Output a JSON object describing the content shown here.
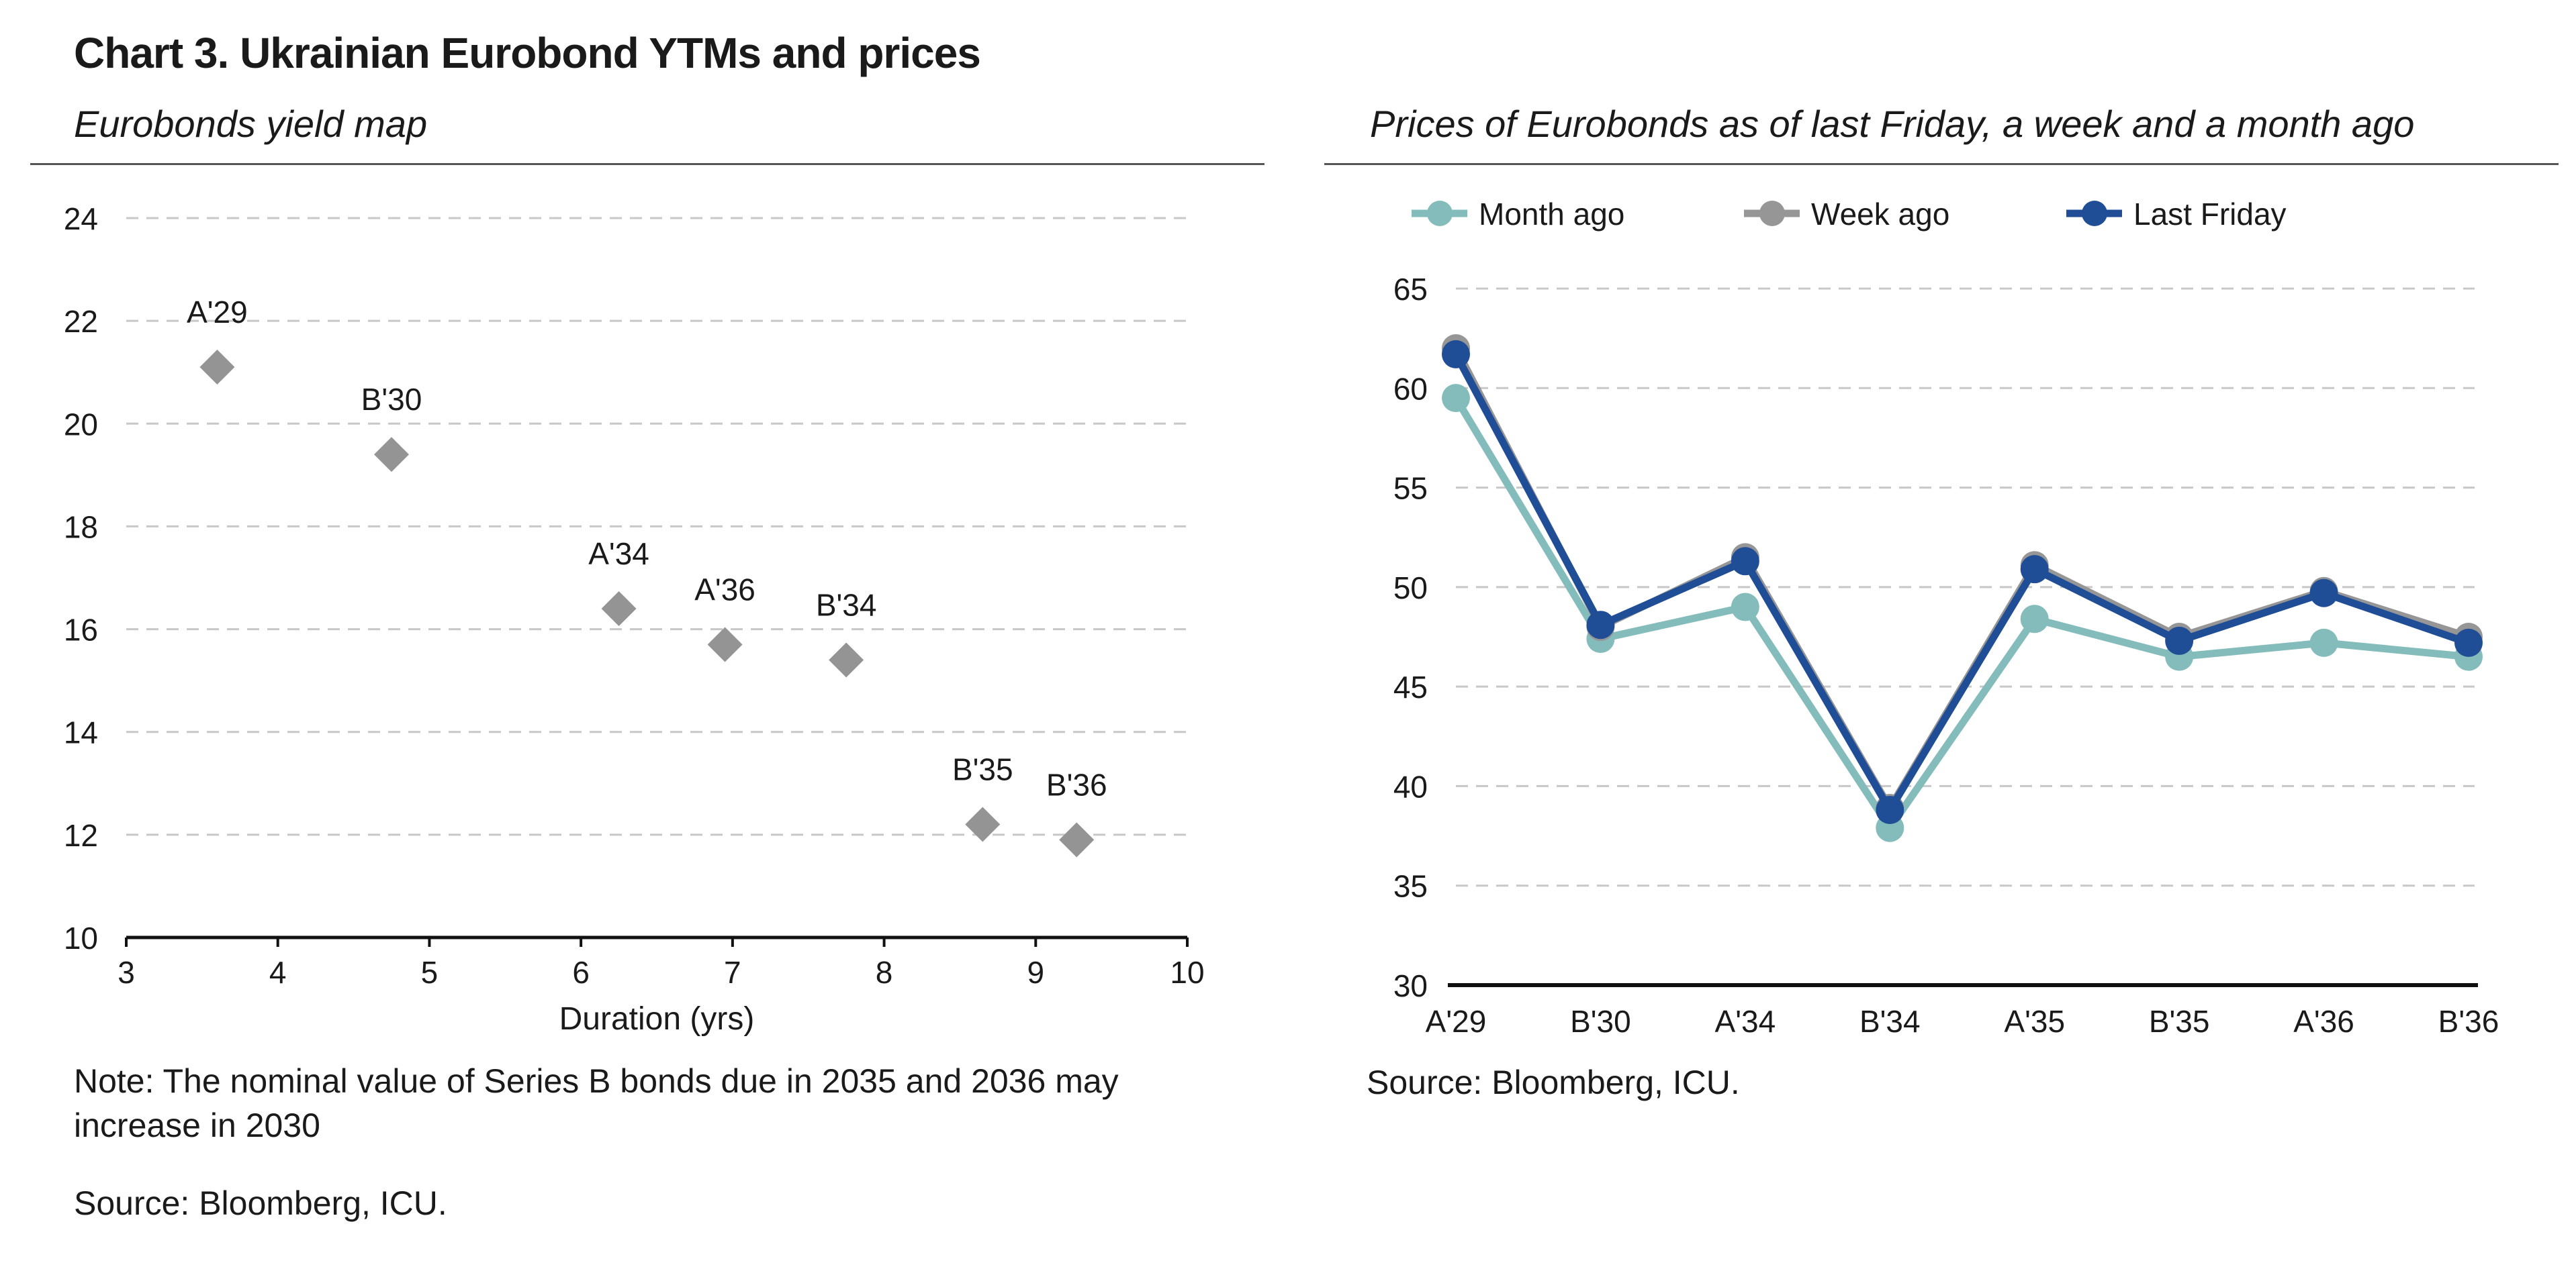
{
  "title": "Chart 3. Ukrainian Eurobond YTMs and prices",
  "left_panel": {
    "subtitle": "Eurobonds yield map",
    "note": "Note: The nominal value of Series B bonds due in 2035 and 2036 may increase in 2030",
    "source": "Source: Bloomberg, ICU."
  },
  "right_panel": {
    "subtitle": "Prices of Eurobonds as of last Friday, a week and a month ago",
    "source": "Source: Bloomberg, ICU."
  },
  "colors": {
    "grid": "#c8c8c8",
    "axis": "#111111",
    "scatter_marker": "#949494",
    "month_ago": "#84bcbc",
    "week_ago": "#969696",
    "last_friday": "#1f4e96"
  },
  "chart_data": [
    {
      "type": "scatter",
      "title": "Eurobonds yield map",
      "xlabel": "Duration (yrs)",
      "ylabel": "",
      "xlim": [
        3,
        10
      ],
      "ylim": [
        10,
        24
      ],
      "xticks": [
        3,
        4,
        5,
        6,
        7,
        8,
        9,
        10
      ],
      "yticks": [
        10,
        12,
        14,
        16,
        18,
        20,
        22,
        24
      ],
      "grid": "horizontal dashed",
      "marker": "diamond",
      "points": [
        {
          "label": "A'29",
          "x": 3.6,
          "y": 21.1
        },
        {
          "label": "B'30",
          "x": 4.75,
          "y": 19.4
        },
        {
          "label": "A'34",
          "x": 6.25,
          "y": 16.4
        },
        {
          "label": "A'36",
          "x": 6.95,
          "y": 15.7
        },
        {
          "label": "B'34",
          "x": 7.75,
          "y": 15.4
        },
        {
          "label": "B'35",
          "x": 8.65,
          "y": 12.2
        },
        {
          "label": "B'36",
          "x": 9.27,
          "y": 11.9
        }
      ]
    },
    {
      "type": "line",
      "title": "Prices of Eurobonds as of last Friday, a week and a month ago",
      "xlabel": "",
      "ylabel": "",
      "categories": [
        "A'29",
        "B'30",
        "A'34",
        "B'34",
        "A'35",
        "B'35",
        "A'36",
        "B'36"
      ],
      "ylim": [
        30,
        65
      ],
      "yticks": [
        30,
        35,
        40,
        45,
        50,
        55,
        60,
        65
      ],
      "grid": "horizontal dashed",
      "legend": "top",
      "series": [
        {
          "name": "Month ago",
          "color_key": "month_ago",
          "values": [
            59.5,
            47.4,
            49.0,
            37.9,
            48.4,
            46.5,
            47.2,
            46.5
          ]
        },
        {
          "name": "Week ago",
          "color_key": "week_ago",
          "values": [
            62.0,
            48.0,
            51.5,
            38.9,
            51.1,
            47.5,
            49.8,
            47.5
          ]
        },
        {
          "name": "Last Friday",
          "color_key": "last_friday",
          "values": [
            61.7,
            48.1,
            51.3,
            38.8,
            50.9,
            47.3,
            49.7,
            47.2
          ]
        }
      ]
    }
  ]
}
